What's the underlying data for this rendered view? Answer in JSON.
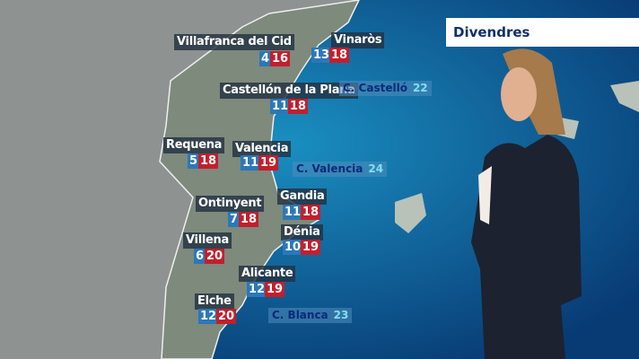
{
  "header": {
    "day": "Divendres"
  },
  "cities": [
    {
      "name": "Villafranca del Cid",
      "min": "4",
      "max": "16"
    },
    {
      "name": "Vinaròs",
      "min": "13",
      "max": "18"
    },
    {
      "name": "Castellón de la Plana",
      "min": "11",
      "max": "18"
    },
    {
      "name": "Requena",
      "min": "5",
      "max": "18"
    },
    {
      "name": "Valencia",
      "min": "11",
      "max": "19"
    },
    {
      "name": "Gandia",
      "min": "11",
      "max": "18"
    },
    {
      "name": "Ontinyent",
      "min": "7",
      "max": "18"
    },
    {
      "name": "Dénia",
      "min": "10",
      "max": "19"
    },
    {
      "name": "Villena",
      "min": "6",
      "max": "20"
    },
    {
      "name": "Alicante",
      "min": "12",
      "max": "19"
    },
    {
      "name": "Elche",
      "min": "12",
      "max": "20"
    }
  ],
  "sea": [
    {
      "name": "C. Castelló",
      "temp": "22"
    },
    {
      "name": "C. Valencia",
      "temp": "24"
    },
    {
      "name": "C. Blanca",
      "temp": "23"
    }
  ],
  "colors": {
    "min": "#2b78b8",
    "max": "#c31f2c",
    "sea": "#0a3f78",
    "header_text": "#10306a"
  }
}
